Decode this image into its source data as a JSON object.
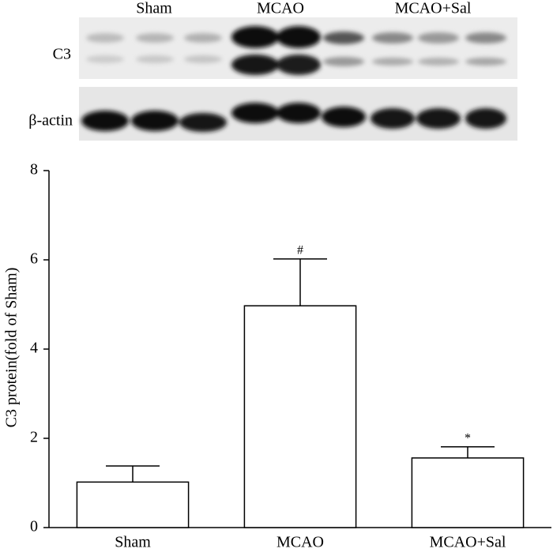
{
  "blot": {
    "group_labels": [
      "Sham",
      "MCAO",
      "MCAO+Sal"
    ],
    "row_labels": [
      "C3",
      "β-actin"
    ]
  },
  "chart_data": {
    "type": "bar",
    "y_label": "C3 protein(fold of Sham)",
    "categories": [
      "Sham",
      "MCAO",
      "MCAO+Sal"
    ],
    "values": [
      1.02,
      4.97,
      1.56
    ],
    "errors": [
      0.36,
      1.05,
      0.25
    ],
    "color": "#ffffff",
    "ylim": [
      0,
      8
    ],
    "yticks": [
      0,
      2,
      4,
      6,
      8
    ],
    "annotations": [
      {
        "category": "MCAO",
        "text": "#"
      },
      {
        "category": "MCAO+Sal",
        "text": "*"
      }
    ]
  }
}
